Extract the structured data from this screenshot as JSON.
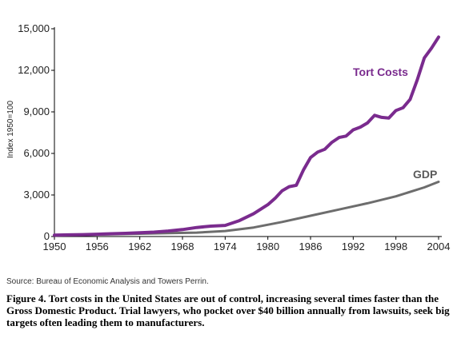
{
  "chart_data": {
    "type": "line",
    "ylabel": "Index 1950=100",
    "xlabel": "",
    "xlim": [
      1950,
      2004
    ],
    "ylim": [
      0,
      15000
    ],
    "yticks": [
      0,
      3000,
      6000,
      9000,
      12000,
      15000
    ],
    "ytick_labels": [
      "0",
      "3,000",
      "6,000",
      "9,000",
      "12,000",
      "15,000"
    ],
    "xticks": [
      1950,
      1956,
      1962,
      1968,
      1974,
      1980,
      1986,
      1992,
      1998,
      2004
    ],
    "xtick_labels": [
      "1950",
      "1956",
      "1962",
      "1968",
      "1974",
      "1980",
      "1986",
      "1992",
      "1998",
      "2004"
    ],
    "grid": false,
    "series": [
      {
        "name": "Tort Costs",
        "color": "#7a2b8e",
        "x": [
          1950,
          1952,
          1954,
          1956,
          1958,
          1960,
          1962,
          1964,
          1966,
          1968,
          1970,
          1972,
          1974,
          1976,
          1978,
          1980,
          1981,
          1982,
          1983,
          1984,
          1985,
          1986,
          1987,
          1988,
          1989,
          1990,
          1991,
          1992,
          1993,
          1994,
          1995,
          1996,
          1997,
          1998,
          1999,
          2000,
          2001,
          2002,
          2003,
          2004
        ],
        "values": [
          100,
          120,
          140,
          170,
          200,
          230,
          270,
          320,
          400,
          500,
          650,
          750,
          800,
          1150,
          1650,
          2300,
          2750,
          3300,
          3600,
          3700,
          4800,
          5700,
          6100,
          6300,
          6800,
          7150,
          7250,
          7700,
          7900,
          8200,
          8750,
          8600,
          8550,
          9100,
          9300,
          9900,
          11300,
          12900,
          13600,
          14400
        ]
      },
      {
        "name": "GDP",
        "color": "#6d6d6d",
        "x": [
          1950,
          1954,
          1958,
          1962,
          1966,
          1970,
          1974,
          1978,
          1982,
          1986,
          1990,
          1994,
          1998,
          2002,
          2004
        ],
        "values": [
          100,
          120,
          160,
          200,
          240,
          280,
          400,
          650,
          1050,
          1500,
          1950,
          2400,
          2900,
          3550,
          3950
        ]
      }
    ],
    "source": "Source: Bureau of Economic Analysis and Towers Perrin."
  },
  "caption": "Figure 4. Tort costs in the United States are out of control, increasing several times faster than the Gross Domestic Product. Trial lawyers, who pocket over $40 billion annually from lawsuits, seek big targets often leading them to manufacturers."
}
